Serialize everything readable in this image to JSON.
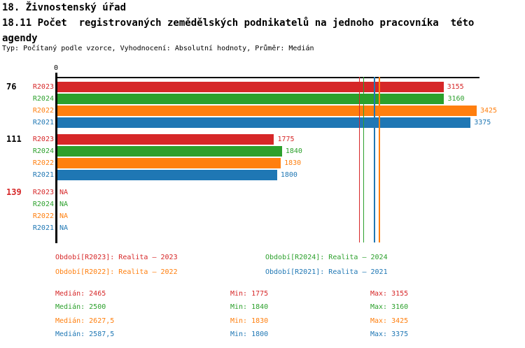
{
  "header": {
    "title1": "18. Živnostenský úřad",
    "title2": "18.11 Počet  registrovaných zemědělských podnikatelů na jednoho pracovníka  této\nagendy",
    "subtitle": "Typ: Počítaný podle vzorce, Vyhodnocení: Absolutní hodnoty, Průměr: Medián"
  },
  "colors": {
    "R2023": "#d62728",
    "R2024": "#2ca02c",
    "R2022": "#ff7f0e",
    "R2021": "#1f77b4",
    "axis": "#000000",
    "text": "#000000"
  },
  "chart_data": {
    "type": "bar",
    "orientation": "horizontal",
    "origin_tick_label": "0",
    "xlim": [
      0,
      3450
    ],
    "grid": false,
    "na_text": "NA",
    "periods": [
      "R2023",
      "R2024",
      "R2022",
      "R2021"
    ],
    "groups": [
      {
        "label": "76",
        "label_color": "#000000",
        "values": {
          "R2023": 3155,
          "R2024": 3160,
          "R2022": 3425,
          "R2021": 3375
        }
      },
      {
        "label": "111",
        "label_color": "#000000",
        "values": {
          "R2023": 1775,
          "R2024": 1840,
          "R2022": 1830,
          "R2021": 1800
        }
      },
      {
        "label": "139",
        "label_color": "#d62728",
        "values": {
          "R2023": null,
          "R2024": null,
          "R2022": null,
          "R2021": null
        }
      }
    ],
    "median_lines": {
      "R2023": 2465,
      "R2024": 2500,
      "R2022": 2627.5,
      "R2021": 2587.5
    }
  },
  "legend": {
    "items": [
      {
        "series": "R2023",
        "label": "Období[R2023]: Realita – 2023"
      },
      {
        "series": "R2024",
        "label": "Období[R2024]: Realita – 2024"
      },
      {
        "series": "R2022",
        "label": "Období[R2022]: Realita – 2022"
      },
      {
        "series": "R2021",
        "label": "Období[R2021]: Realita – 2021"
      }
    ]
  },
  "stats": {
    "labels": {
      "median": "Medián",
      "min": "Min",
      "max": "Max"
    },
    "rows": [
      {
        "series": "R2023",
        "median": "2465",
        "min": "1775",
        "max": "3155"
      },
      {
        "series": "R2024",
        "median": "2500",
        "min": "1840",
        "max": "3160"
      },
      {
        "series": "R2022",
        "median": "2627,5",
        "min": "1830",
        "max": "3425"
      },
      {
        "series": "R2021",
        "median": "2587,5",
        "min": "1800",
        "max": "3375"
      }
    ]
  }
}
